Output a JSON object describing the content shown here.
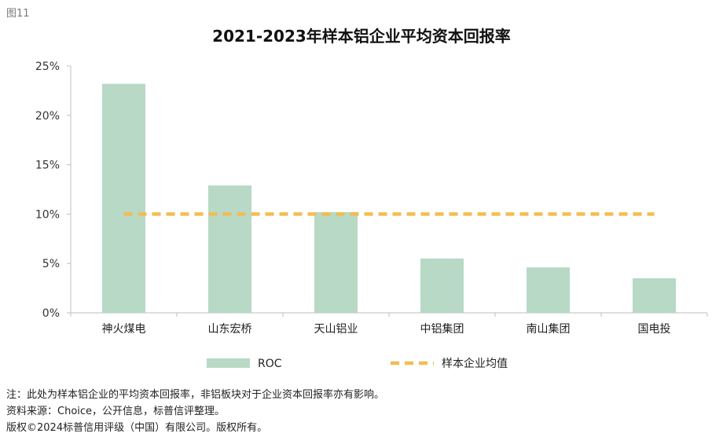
{
  "figure_label": "图11",
  "notes": [
    "注：此处为样本铝企业的平均资本回报率，非铝板块对于企业资本回报率亦有影响。",
    "资料来源：Choice，公开信息，标普信评整理。",
    "版权©2024标普信用评级（中国）有限公司。版权所有。"
  ],
  "chart_data": {
    "type": "bar",
    "title": "2021-2023年样本铝企业平均资本回报率",
    "categories": [
      "神火煤电",
      "山东宏桥",
      "天山铝业",
      "中铝集团",
      "南山集团",
      "国电投"
    ],
    "series": [
      {
        "name": "ROC",
        "type": "bar",
        "values": [
          23.2,
          12.9,
          10.2,
          5.5,
          4.6,
          3.5
        ]
      },
      {
        "name": "样本企业均值",
        "type": "line",
        "style": "dashed",
        "values": [
          10.0,
          10.0,
          10.0,
          10.0,
          10.0,
          10.0
        ]
      }
    ],
    "yticks": [
      "0%",
      "5%",
      "10%",
      "15%",
      "20%",
      "25%"
    ],
    "ylim": [
      0,
      25
    ],
    "ylabel": "",
    "xlabel": "",
    "grid": false,
    "legend_position": "bottom",
    "colors": {
      "bar": "#b7d9c6",
      "line": "#f2bd52",
      "axis": "#bfbfbf"
    }
  }
}
